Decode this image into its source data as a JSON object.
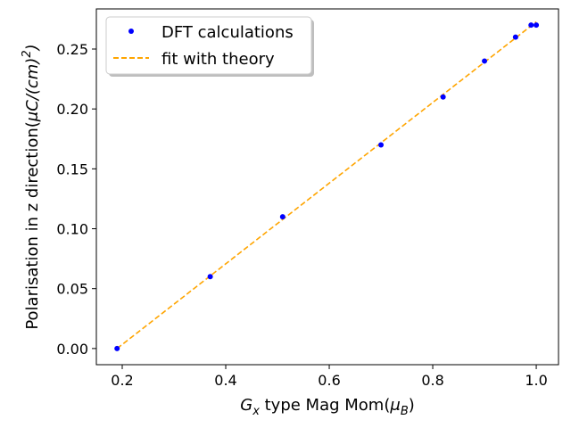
{
  "chart_data": {
    "type": "scatter",
    "title": "",
    "xlabel": {
      "prefix": "G",
      "sub": "x",
      "rest": " type Mag Mom(",
      "mu": "μ",
      "mu_sub": "B",
      "close": ")"
    },
    "ylabel": {
      "text": "Polarisation in z direction(",
      "unit": "μC/(cm)",
      "sup": "2",
      "close": ")"
    },
    "xlim": [
      0.15,
      1.043
    ],
    "ylim": [
      -0.0135,
      0.2835
    ],
    "xticks": [
      0.2,
      0.4,
      0.6,
      0.8,
      1.0
    ],
    "xtick_labels": [
      "0.2",
      "0.4",
      "0.6",
      "0.8",
      "1.0"
    ],
    "yticks": [
      0.0,
      0.05,
      0.1,
      0.15,
      0.2,
      0.25
    ],
    "ytick_labels": [
      "0.00",
      "0.05",
      "0.10",
      "0.15",
      "0.20",
      "0.25"
    ],
    "series": [
      {
        "name": "DFT calculations",
        "kind": "points",
        "color": "#0000ff",
        "x": [
          0.19,
          0.37,
          0.51,
          0.7,
          0.82,
          0.9,
          0.96,
          0.99,
          1.0
        ],
        "y": [
          0.0,
          0.06,
          0.11,
          0.17,
          0.21,
          0.24,
          0.26,
          0.27,
          0.27
        ]
      },
      {
        "name": "fit with theory",
        "kind": "dashed-line",
        "color": "#ffa500",
        "x": [
          0.19,
          1.0
        ],
        "y": [
          0.0,
          0.2727
        ]
      }
    ],
    "legend": {
      "position": "upper-left",
      "entries": [
        "DFT calculations",
        "fit with theory"
      ]
    },
    "grid": false
  }
}
